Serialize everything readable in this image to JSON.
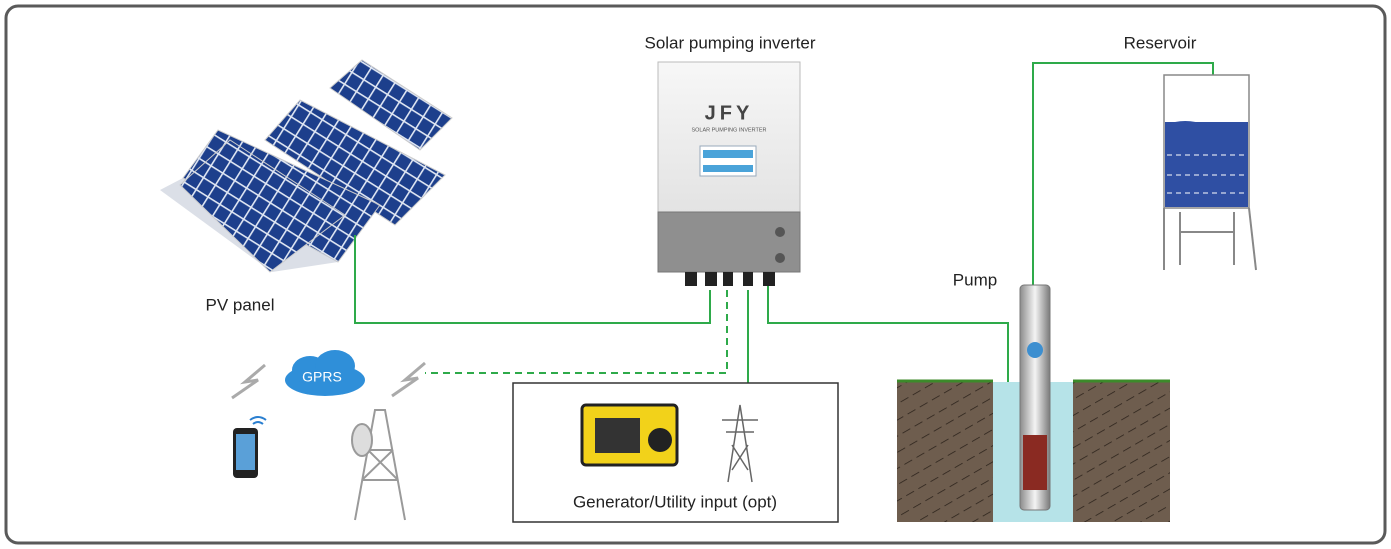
{
  "labels": {
    "inverter": "Solar pumping inverter",
    "reservoir": "Reservoir",
    "pv_panel": "PV panel",
    "pump": "Pump",
    "gprs": "GPRS",
    "generator": "Generator/Utility input (opt)",
    "brand": "JFY",
    "brand_sub": "SOLAR PUMPING INVERTER"
  }
}
